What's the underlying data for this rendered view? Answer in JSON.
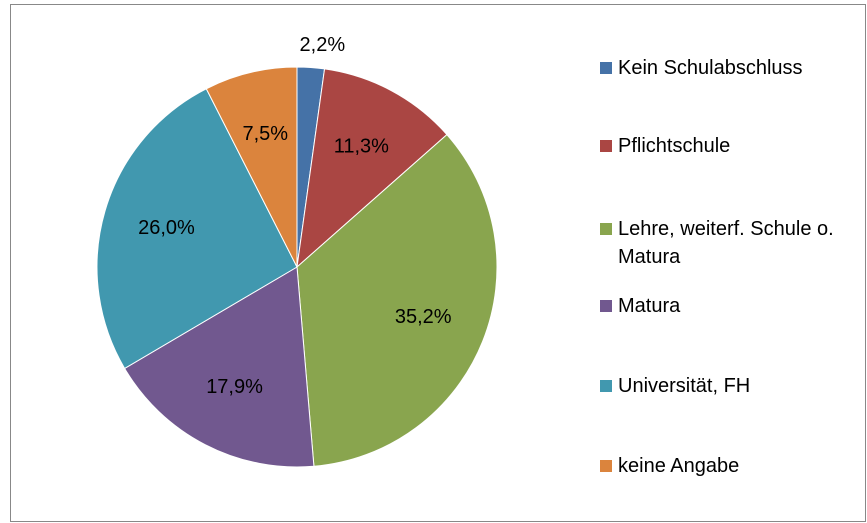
{
  "chart_data": {
    "type": "pie",
    "categories": [
      "Kein Schulabschluss",
      "Pflichtschule",
      "Lehre, weiterf. Schule o. Matura",
      "Matura",
      "Universität, FH",
      "keine Angabe"
    ],
    "values": [
      2.2,
      11.3,
      35.2,
      17.9,
      26.0,
      7.5
    ],
    "value_labels": [
      "2,2%",
      "11,3%",
      "35,2%",
      "17,9%",
      "26,0%",
      "7,5%"
    ],
    "colors": [
      "#4572a7",
      "#aa4643",
      "#89a54e",
      "#71588f",
      "#4198af",
      "#db843d"
    ],
    "legend": "right"
  }
}
